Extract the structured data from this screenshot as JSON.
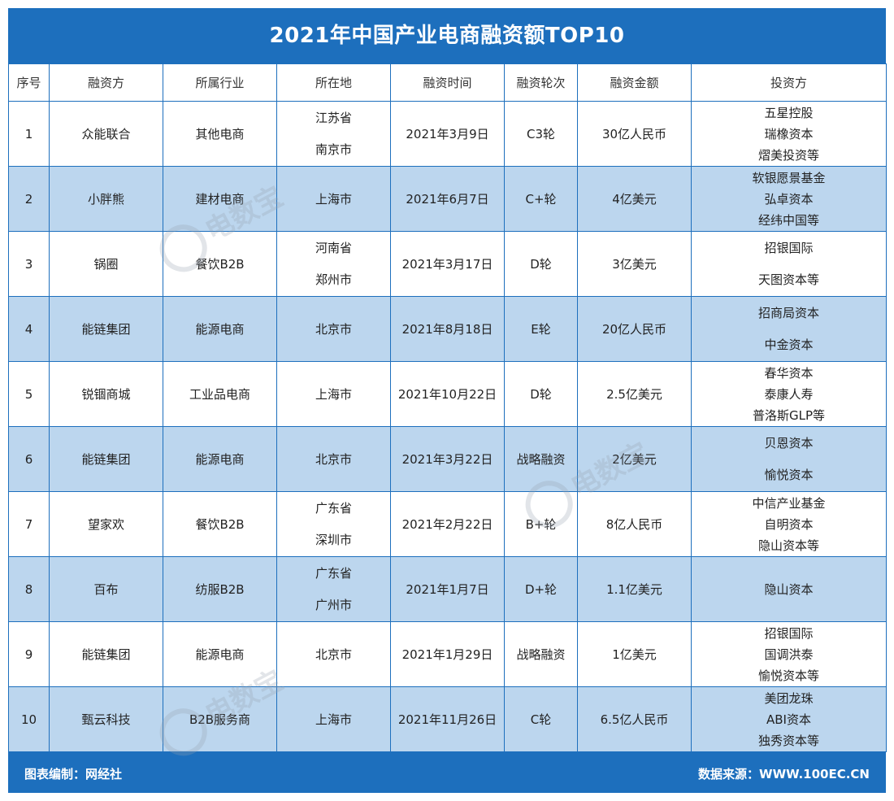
{
  "title": "2021年中国产业电商融资额TOP10",
  "headers": [
    "序号",
    "融资方",
    "所属行业",
    "所在地",
    "融资时间",
    "融资轮次",
    "融资金额",
    "投资方"
  ],
  "rows": [
    {
      "no": "1",
      "company": "众能联合",
      "industry": "其他电商",
      "location": [
        "江苏省",
        "南京市"
      ],
      "date": "2021年3月9日",
      "round": "C3轮",
      "amount": "30亿人民币",
      "investors": [
        "五星控股",
        "瑞橡资本",
        "熠美投资等"
      ]
    },
    {
      "no": "2",
      "company": "小胖熊",
      "industry": "建材电商",
      "location": [
        "上海市"
      ],
      "date": "2021年6月7日",
      "round": "C+轮",
      "amount": "4亿美元",
      "investors": [
        "软银愿景基金",
        "弘卓资本",
        "经纬中国等"
      ]
    },
    {
      "no": "3",
      "company": "锅圈",
      "industry": "餐饮B2B",
      "location": [
        "河南省",
        "郑州市"
      ],
      "date": "2021年3月17日",
      "round": "D轮",
      "amount": "3亿美元",
      "investors": [
        "招银国际",
        "天图资本等"
      ]
    },
    {
      "no": "4",
      "company": "能链集团",
      "industry": "能源电商",
      "location": [
        "北京市"
      ],
      "date": "2021年8月18日",
      "round": "E轮",
      "amount": "20亿人民币",
      "investors": [
        "招商局资本",
        "中金资本"
      ]
    },
    {
      "no": "5",
      "company": "锐锢商城",
      "industry": "工业品电商",
      "location": [
        "上海市"
      ],
      "date": "2021年10月22日",
      "round": "D轮",
      "amount": "2.5亿美元",
      "investors": [
        "春华资本",
        "泰康人寿",
        "普洛斯GLP等"
      ]
    },
    {
      "no": "6",
      "company": "能链集团",
      "industry": "能源电商",
      "location": [
        "北京市"
      ],
      "date": "2021年3月22日",
      "round": "战略融资",
      "amount": "2亿美元",
      "investors": [
        "贝恩资本",
        "愉悦资本"
      ]
    },
    {
      "no": "7",
      "company": "望家欢",
      "industry": "餐饮B2B",
      "location": [
        "广东省",
        "深圳市"
      ],
      "date": "2021年2月22日",
      "round": "B+轮",
      "amount": "8亿人民币",
      "investors": [
        "中信产业基金",
        "自明资本",
        "隐山资本等"
      ]
    },
    {
      "no": "8",
      "company": "百布",
      "industry": "纺服B2B",
      "location": [
        "广东省",
        "广州市"
      ],
      "date": "2021年1月7日",
      "round": "D+轮",
      "amount": "1.1亿美元",
      "investors": [
        "隐山资本"
      ]
    },
    {
      "no": "9",
      "company": "能链集团",
      "industry": "能源电商",
      "location": [
        "北京市"
      ],
      "date": "2021年1月29日",
      "round": "战略融资",
      "amount": "1亿美元",
      "investors": [
        "招银国际",
        "国调洪泰",
        "愉悦资本等"
      ]
    },
    {
      "no": "10",
      "company": "甄云科技",
      "industry": "B2B服务商",
      "location": [
        "上海市"
      ],
      "date": "2021年11月26日",
      "round": "C轮",
      "amount": "6.5亿人民币",
      "investors": [
        "美团龙珠",
        "ABI资本",
        "独秀资本等"
      ]
    }
  ],
  "footer": {
    "left": "图表编制：网经社",
    "right": "数据来源：WWW.100EC.CN"
  },
  "watermark": "电数宝",
  "colors": {
    "primary": "#1d6fbd",
    "row_alt": "#bcd6ee"
  }
}
